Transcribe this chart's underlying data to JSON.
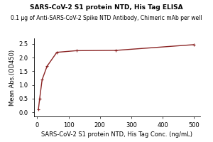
{
  "title": "SARS-CoV-2 S1 protein NTD, His Tag ELISA",
  "subtitle": "0.1 μg of Anti-SARS-CoV-2 Spike NTD Antibody, Chimeric mAb per well",
  "xlabel": "SARS-CoV-2 S1 protein NTD, His Tag Conc. (ng/mL)",
  "ylabel": "Mean Abs.(OD450)",
  "x_data": [
    3.9,
    7.8,
    15.6,
    31.25,
    62.5,
    125,
    250,
    500
  ],
  "y_data": [
    0.12,
    0.5,
    1.19,
    1.68,
    2.19,
    2.25,
    2.26,
    2.47
  ],
  "xlim": [
    -10,
    520
  ],
  "ylim": [
    -0.15,
    2.7
  ],
  "xticks": [
    0,
    100,
    200,
    300,
    400,
    500
  ],
  "yticks": [
    0.0,
    0.5,
    1.0,
    1.5,
    2.0,
    2.5
  ],
  "line_color": "#8B2525",
  "marker_color": "#8B2525",
  "bg_color": "#FFFFFF",
  "title_fontsize": 6.5,
  "subtitle_fontsize": 5.5,
  "axis_label_fontsize": 6,
  "tick_fontsize": 6
}
